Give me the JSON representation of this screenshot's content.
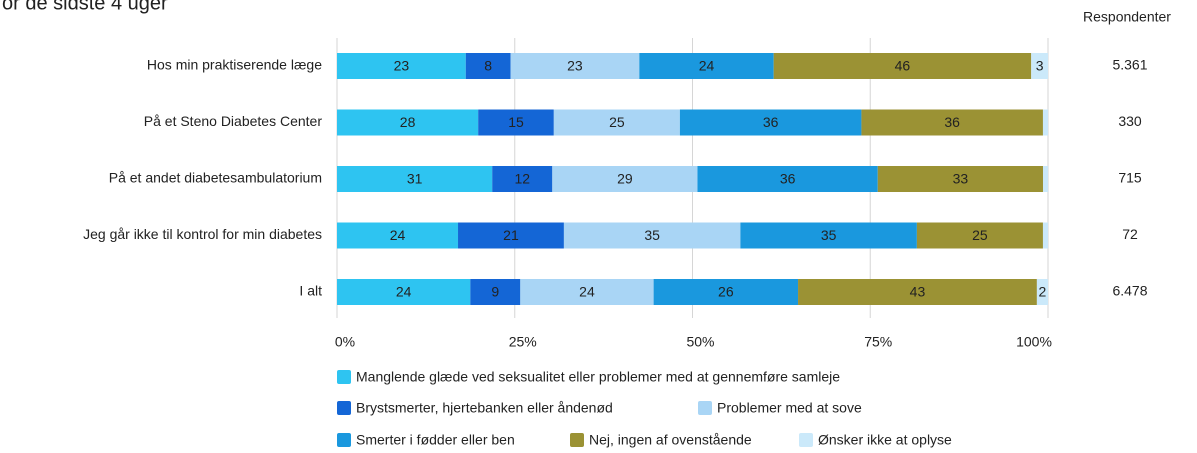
{
  "chart_data": {
    "type": "stacked_bar_100",
    "orientation": "horizontal",
    "title": "or de sidste 4 uger",
    "categories": [
      "Hos min praktiserende læge",
      "På et Steno Diabetes Center",
      "På et andet diabetesambulatorium",
      "Jeg går ikke til kontrol for min diabetes",
      "I alt"
    ],
    "series": [
      {
        "name": "Manglende glæde ved seksualitet eller problemer med at gennemføre samleje",
        "color": "#2ec4f1",
        "values": [
          23,
          28,
          31,
          24,
          24
        ]
      },
      {
        "name": "Brystsmerter, hjertebanken eller åndenød",
        "color": "#1466d6",
        "values": [
          8,
          15,
          12,
          21,
          9
        ]
      },
      {
        "name": "Problemer med at sove",
        "color": "#a9d5f5",
        "values": [
          23,
          25,
          29,
          35,
          24
        ]
      },
      {
        "name": "Smerter i fødder eller ben",
        "color": "#1a98de",
        "values": [
          24,
          36,
          36,
          35,
          26
        ]
      },
      {
        "name": "Nej, ingen af ovenstående",
        "color": "#9b9234",
        "values": [
          46,
          36,
          33,
          25,
          43
        ]
      },
      {
        "name": "Ønsker ikke at oplyse",
        "color": "#cbe9fa",
        "values": [
          3,
          1,
          1,
          1,
          2
        ]
      }
    ],
    "xlim": [
      0,
      100
    ],
    "xticks": [
      {
        "value": 0,
        "label": "0%"
      },
      {
        "value": 25,
        "label": "25%"
      },
      {
        "value": 50,
        "label": "50%"
      },
      {
        "value": 75,
        "label": "75%"
      },
      {
        "value": 100,
        "label": "100%"
      }
    ],
    "grid": true,
    "respondents_header": "Respondenter",
    "respondents": [
      "5.361",
      "330",
      "715",
      "72",
      "6.478"
    ]
  }
}
